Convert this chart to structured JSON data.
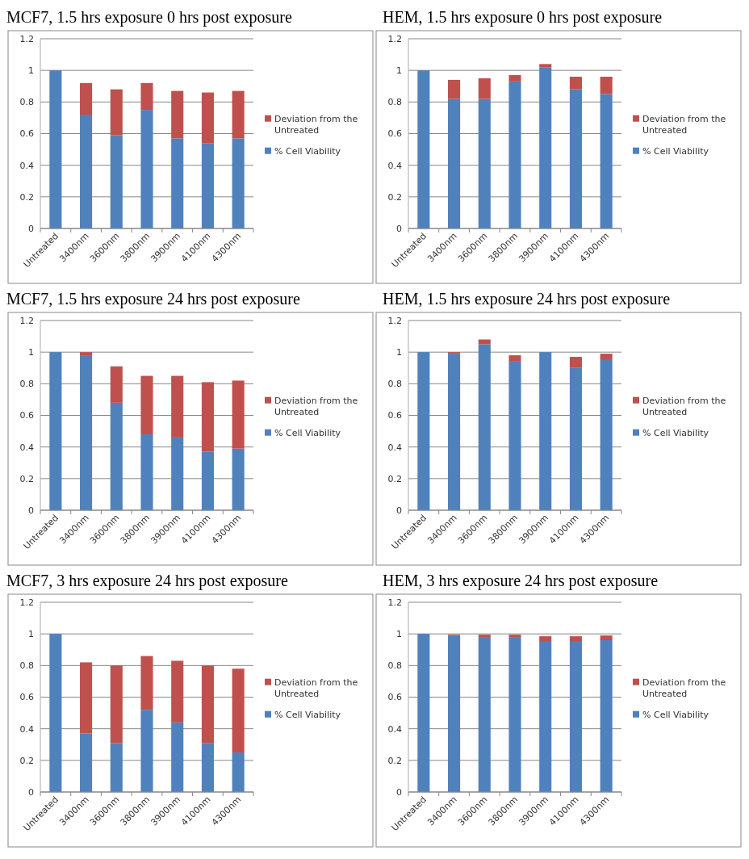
{
  "chart_data": [
    {
      "type": "bar",
      "title": "MCF7, 1.5 hrs exposure 0 hrs post exposure",
      "categories": [
        "Untreated",
        "3400nm",
        "3600nm",
        "3800nm",
        "3900nm",
        "4100nm",
        "4300nm"
      ],
      "stacked": true,
      "ylim": [
        0,
        1.2
      ],
      "yticks": [
        0,
        0.2,
        0.4,
        0.6,
        0.8,
        1,
        1.2
      ],
      "grid": "y",
      "legend": "right",
      "series": [
        {
          "name": "% Cell Viability",
          "color": "#4f81bd",
          "values": [
            1,
            0.72,
            0.59,
            0.75,
            0.57,
            0.54,
            0.57
          ]
        },
        {
          "name": "Deviation from the Untreated",
          "color": "#c0504d",
          "values": [
            0,
            0.2,
            0.29,
            0.17,
            0.3,
            0.32,
            0.3
          ]
        }
      ]
    },
    {
      "type": "bar",
      "title": "HEM, 1.5 hrs exposure 0 hrs post exposure",
      "categories": [
        "Untreated",
        "3400nm",
        "3600nm",
        "3800nm",
        "3900nm",
        "4100nm",
        "4300nm"
      ],
      "stacked": true,
      "ylim": [
        0,
        1.2
      ],
      "yticks": [
        0,
        0.2,
        0.4,
        0.6,
        0.8,
        1,
        1.2
      ],
      "grid": "y",
      "legend": "right",
      "series": [
        {
          "name": "% Cell Viability",
          "color": "#4f81bd",
          "values": [
            1,
            0.82,
            0.82,
            0.93,
            1.02,
            0.88,
            0.85
          ]
        },
        {
          "name": "Deviation from the Untreated",
          "color": "#c0504d",
          "values": [
            0,
            0.12,
            0.13,
            0.04,
            0.02,
            0.08,
            0.11
          ]
        }
      ]
    },
    {
      "type": "bar",
      "title": "MCF7, 1.5 hrs exposure 24 hrs post exposure",
      "categories": [
        "Untreated",
        "3400nm",
        "3600nm",
        "3800nm",
        "3900nm",
        "4100nm",
        "4300nm"
      ],
      "stacked": true,
      "ylim": [
        0,
        1.2
      ],
      "yticks": [
        0,
        0.2,
        0.4,
        0.6,
        0.8,
        1,
        1.2
      ],
      "grid": "y",
      "legend": "right",
      "series": [
        {
          "name": "% Cell Viability",
          "color": "#4f81bd",
          "values": [
            1,
            0.98,
            0.68,
            0.48,
            0.46,
            0.37,
            0.39
          ]
        },
        {
          "name": "Deviation from the Untreated",
          "color": "#c0504d",
          "values": [
            0,
            0.02,
            0.23,
            0.37,
            0.39,
            0.44,
            0.43
          ]
        }
      ]
    },
    {
      "type": "bar",
      "title": "HEM, 1.5 hrs exposure 24 hrs post exposure",
      "categories": [
        "Untreated",
        "3400nm",
        "3600nm",
        "3800nm",
        "3900nm",
        "4100nm",
        "4300nm"
      ],
      "stacked": true,
      "ylim": [
        0,
        1.2
      ],
      "yticks": [
        0,
        0.2,
        0.4,
        0.6,
        0.8,
        1,
        1.2
      ],
      "grid": "y",
      "legend": "right",
      "series": [
        {
          "name": "% Cell Viability",
          "color": "#4f81bd",
          "values": [
            1,
            0.99,
            1.05,
            0.94,
            1,
            0.9,
            0.95
          ]
        },
        {
          "name": "Deviation from the Untreated",
          "color": "#c0504d",
          "values": [
            0,
            0.01,
            0.03,
            0.04,
            0,
            0.07,
            0.04
          ]
        }
      ]
    },
    {
      "type": "bar",
      "title": "MCF7, 3 hrs exposure 24 hrs post exposure",
      "categories": [
        "Untreated",
        "3400nm",
        "3600nm",
        "3800nm",
        "3900nm",
        "4100nm",
        "4300nm"
      ],
      "stacked": true,
      "ylim": [
        0,
        1.2
      ],
      "yticks": [
        0,
        0.2,
        0.4,
        0.6,
        0.8,
        1,
        1.2
      ],
      "grid": "y",
      "legend": "right",
      "series": [
        {
          "name": "% Cell Viability",
          "color": "#4f81bd",
          "values": [
            1,
            0.37,
            0.31,
            0.52,
            0.44,
            0.31,
            0.25
          ]
        },
        {
          "name": "Deviation from the Untreated",
          "color": "#c0504d",
          "values": [
            0,
            0.45,
            0.49,
            0.34,
            0.39,
            0.49,
            0.53
          ]
        }
      ]
    },
    {
      "type": "bar",
      "title": "HEM, 3 hrs exposure 24 hrs post exposure",
      "categories": [
        "Untreated",
        "3400nm",
        "3600nm",
        "3800nm",
        "3900nm",
        "4100nm",
        "4300nm"
      ],
      "stacked": true,
      "ylim": [
        0,
        1.2
      ],
      "yticks": [
        0,
        0.2,
        0.4,
        0.6,
        0.8,
        1,
        1.2
      ],
      "grid": "y",
      "legend": "right",
      "series": [
        {
          "name": "% Cell Viability",
          "color": "#4f81bd",
          "values": [
            1,
            0.99,
            0.98,
            0.98,
            0.95,
            0.95,
            0.96
          ]
        },
        {
          "name": "Deviation from the Untreated",
          "color": "#c0504d",
          "values": [
            0,
            0.005,
            0.015,
            0.015,
            0.035,
            0.035,
            0.03
          ]
        }
      ]
    }
  ]
}
